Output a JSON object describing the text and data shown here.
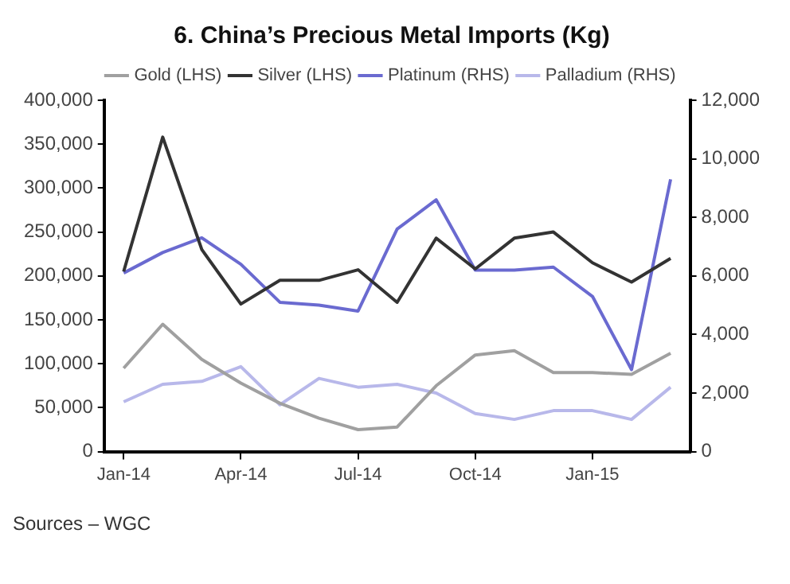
{
  "chart_data": {
    "type": "line",
    "title": "6. China’s Precious Metal Imports (Kg)",
    "categories": [
      "Jan-14",
      null,
      null,
      "Apr-14",
      null,
      null,
      "Jul-14",
      null,
      null,
      "Oct-14",
      null,
      null,
      "Jan-15",
      null,
      null
    ],
    "series": [
      {
        "name": "Gold (LHS)",
        "color": "#a0a0a0",
        "values": [
          95000,
          145000,
          105000,
          78000,
          55000,
          38000,
          25000,
          28000,
          75000,
          110000,
          115000,
          90000,
          90000,
          88000,
          112000
        ]
      },
      {
        "name": "Silver (LHS)",
        "color": "#333333",
        "values": [
          205000,
          358000,
          230000,
          168000,
          195000,
          195000,
          207000,
          170000,
          243000,
          208000,
          243000,
          250000,
          215000,
          193000,
          220000
        ]
      },
      {
        "name": "Platinum (RHS)",
        "color": "#6a6ad0",
        "axis": "y2",
        "values": [
          6100,
          6800,
          7300,
          6400,
          5100,
          5000,
          4800,
          7600,
          8600,
          6200,
          6200,
          6300,
          5300,
          2800,
          9300
        ]
      },
      {
        "name": "Palladium (RHS)",
        "color": "#b8b8ea",
        "axis": "y2",
        "values": [
          1700,
          2300,
          2400,
          2900,
          1600,
          2500,
          2200,
          2300,
          2000,
          1300,
          1100,
          1400,
          1400,
          1100,
          2200
        ]
      }
    ],
    "ylim": [
      0,
      400000
    ],
    "yticks": [
      {
        "value": 0,
        "label": "0"
      },
      {
        "value": 50000,
        "label": "50,000"
      },
      {
        "value": 100000,
        "label": "100,000"
      },
      {
        "value": 150000,
        "label": "150,000"
      },
      {
        "value": 200000,
        "label": "200,000"
      },
      {
        "value": 250000,
        "label": "250,000"
      },
      {
        "value": 300000,
        "label": "300,000"
      },
      {
        "value": 350000,
        "label": "350,000"
      },
      {
        "value": 400000,
        "label": "400,000"
      }
    ],
    "y2lim": [
      0,
      12000
    ],
    "y2ticks": [
      {
        "value": 0,
        "label": "0"
      },
      {
        "value": 2000,
        "label": "2,000"
      },
      {
        "value": 4000,
        "label": "4,000"
      },
      {
        "value": 6000,
        "label": "6,000"
      },
      {
        "value": 8000,
        "label": "8,000"
      },
      {
        "value": 10000,
        "label": "10,000"
      },
      {
        "value": 12000,
        "label": "12,000"
      }
    ],
    "legend": "top",
    "grid": false,
    "marker": "none",
    "line_style": "solid",
    "annotations": [
      "Sources – WGC"
    ]
  }
}
